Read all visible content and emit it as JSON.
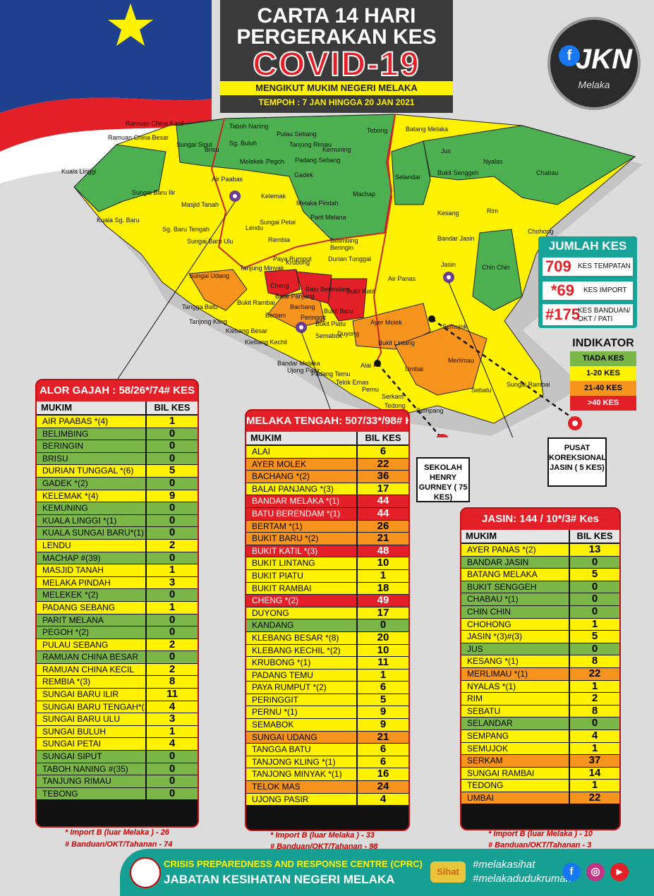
{
  "header": {
    "line1": "CARTA 14 HARI",
    "line2": "PERGERAKAN KES",
    "line3": "COVID-19",
    "subtitle": "MENGIKUT MUKIM NEGERI MELAKA",
    "period": "TEMPOH : 7 JAN HINGGA 20 JAN  2021"
  },
  "logo": {
    "text": "JKN",
    "sub": "Melaka",
    "icon": "facebook-icon"
  },
  "map_labels": [
    "Ramuan China Kecil",
    "Ramuan China Besar",
    "Kuala Linggi",
    "Taboh Naning",
    "Pulau Sebang",
    "Tebong",
    "Batang Melaka",
    "Sungai Siput",
    "Brisu",
    "Sg. Buluh",
    "Tanjung Rimau",
    "Kemuning",
    "Melekek",
    "Pegoh",
    "Padang Sebang",
    "Gadek",
    "Jus",
    "Nyalas",
    "Selandar",
    "Bukit Senggeh",
    "Chabau",
    "Air Paabas",
    "Sungai Baru Ilir",
    "Kelemak",
    "Machap",
    "Masjid Tanah",
    "Melaka Pindah",
    "Kuala Sg. Baru",
    "Lendu",
    "Sungai Petai",
    "Parit Melana",
    "Kesang",
    "Rim",
    "Chohong",
    "Sg. Baru Tengah",
    "Sungai Baru Ulu",
    "Rembia",
    "Belimbing",
    "Beringin",
    "Bandar Jasin",
    "Durian Tunggal",
    "Paya Rumput",
    "Krubong",
    "Tanjung Minyak",
    "Sungai Udang",
    "Cheng",
    "Batu Berendam",
    "Bukit Katil",
    "Air Panas",
    "Jasin",
    "Chin Chin",
    "Balai Panjang",
    "Bukit Rambai",
    "Bachang",
    "Bukit Baru",
    "Bertam",
    "Tangga Batu",
    "Peringgit",
    "Bukit Piatu",
    "Tanjong Kling",
    "Semabok",
    "Duyong",
    "Ayer Molek",
    "Klebang Besar",
    "Klebang Kechil",
    "Bukit Lintang",
    "Semujok",
    "Bandar Melaka",
    "Ujong Pasir",
    "Padang Temu",
    "Alai",
    "Merlimau",
    "Telok Emas",
    "Pernu",
    "Umbai",
    "Sebatu",
    "Sungai Rambai",
    "Serkam",
    "Tedong",
    "Sempang"
  ],
  "jumlah": {
    "title": "JUMLAH KES",
    "items": [
      {
        "num": "709",
        "label": "KES TEMPATAN"
      },
      {
        "num": "*69",
        "label": "KES IMPORT"
      },
      {
        "num": "#175",
        "label": "KES BANDUAN/ OKT / PATI"
      }
    ]
  },
  "indikator": {
    "title": "INDIKATOR",
    "rows": [
      {
        "label": "TIADA KES",
        "color": "#7ab648"
      },
      {
        "label": "1-20  KES",
        "color": "#fff200"
      },
      {
        "label": "21-40  KES",
        "color": "#f7941d"
      },
      {
        "label": ">40  KES",
        "color": "#e32027"
      }
    ]
  },
  "callouts": {
    "henry": "SEKOLAH HENRY GURNEY ( 75 KES)",
    "pusat": "PUSAT KOREKSIONAL JASIN ( 5 KES)"
  },
  "tables": {
    "alor": {
      "title": "ALOR GAJAH : 58/26*/74# KES",
      "h1": "MUKIM",
      "h2": "BIL KES",
      "rows": [
        [
          "AIR PAABAS *(4)",
          "1",
          "y"
        ],
        [
          "BELIMBING",
          "0",
          "g"
        ],
        [
          "BERINGIN",
          "0",
          "g"
        ],
        [
          "BRISU",
          "0",
          "g"
        ],
        [
          "DURIAN TUNGGAL *(6)",
          "5",
          "y"
        ],
        [
          "GADEK *(2)",
          "0",
          "g"
        ],
        [
          "KELEMAK *(4)",
          "9",
          "y"
        ],
        [
          "KEMUNING",
          "0",
          "g"
        ],
        [
          "KUALA LINGGI *(1)",
          "0",
          "g"
        ],
        [
          "KUALA SUNGAI BARU*(1)",
          "0",
          "g"
        ],
        [
          "LENDU",
          "2",
          "y"
        ],
        [
          "MACHAP #(39)",
          "0",
          "g"
        ],
        [
          "MASJID TANAH",
          "1",
          "y"
        ],
        [
          "MELAKA PINDAH",
          "3",
          "y"
        ],
        [
          "MELEKEK *(2)",
          "0",
          "g"
        ],
        [
          "PADANG SEBANG",
          "1",
          "y"
        ],
        [
          "PARIT MELANA",
          "0",
          "g"
        ],
        [
          "PEGOH *(2)",
          "0",
          "g"
        ],
        [
          "PULAU SEBANG",
          "2",
          "y"
        ],
        [
          "RAMUAN CHINA BESAR",
          "0",
          "g"
        ],
        [
          "RAMUAN CHINA KECIL",
          "2",
          "y"
        ],
        [
          "REMBIA *(3)",
          "8",
          "y"
        ],
        [
          "SUNGAI BARU ILIR",
          "11",
          "y"
        ],
        [
          "SUNGAI BARU TENGAH*(1)",
          "4",
          "y"
        ],
        [
          "SUNGAI BARU ULU",
          "3",
          "y"
        ],
        [
          "SUNGAI BULUH",
          "1",
          "y"
        ],
        [
          "SUNGAI PETAI",
          "4",
          "y"
        ],
        [
          "SUNGAI SIPUT",
          "0",
          "g"
        ],
        [
          "TABOH NANING #(35)",
          "0",
          "g"
        ],
        [
          "TANJUNG RIMAU",
          "0",
          "g"
        ],
        [
          "TEBONG",
          "0",
          "g"
        ]
      ],
      "foot1": "* Import B (luar Melaka ) - 26",
      "foot2": "# Banduan/OKT/Tahanan  - 74"
    },
    "tengah": {
      "title": "MELAKA TENGAH: 507/33*/98# KES",
      "h1": "MUKIM",
      "h2": "BIL KES",
      "rows": [
        [
          "ALAI",
          "6",
          "y"
        ],
        [
          "AYER MOLEK",
          "22",
          "o"
        ],
        [
          "BACHANG *(2)",
          "36",
          "o"
        ],
        [
          "BALAI PANJANG *(3)",
          "17",
          "y"
        ],
        [
          "BANDAR MELAKA *(1)",
          "44",
          "r"
        ],
        [
          "BATU BERENDAM *(1)",
          "44",
          "r"
        ],
        [
          "BERTAM *(1)",
          "26",
          "o"
        ],
        [
          "BUKIT BARU *(2)",
          "21",
          "o"
        ],
        [
          "BUKIT KATIL *(3)",
          "48",
          "r"
        ],
        [
          "BUKIT LINTANG",
          "10",
          "y"
        ],
        [
          "BUKIT PIATU",
          "1",
          "y"
        ],
        [
          "BUKIT RAMBAI",
          "18",
          "y"
        ],
        [
          "CHENG *(2)",
          "49",
          "r"
        ],
        [
          "DUYONG",
          "17",
          "y"
        ],
        [
          "KANDANG",
          "0",
          "g"
        ],
        [
          "KLEBANG BESAR *(8)",
          "20",
          "y"
        ],
        [
          "KLEBANG KECHIL *(2)",
          "10",
          "y"
        ],
        [
          "KRUBONG *(1)",
          "11",
          "y"
        ],
        [
          "PADANG TEMU",
          "1",
          "y"
        ],
        [
          "PAYA RUMPUT *(2)",
          "6",
          "y"
        ],
        [
          "PERINGGIT",
          "5",
          "y"
        ],
        [
          "PERNU *(1)",
          "9",
          "y"
        ],
        [
          "SEMABOK",
          "9",
          "y"
        ],
        [
          "SUNGAI UDANG",
          "21",
          "o"
        ],
        [
          "TANGGA BATU",
          "6",
          "y"
        ],
        [
          "TANJONG KLING *(1)",
          "6",
          "y"
        ],
        [
          "TANJONG MINYAK *(1)",
          "16",
          "y"
        ],
        [
          "TELOK MAS",
          "24",
          "o"
        ],
        [
          "UJONG PASIR",
          "4",
          "y"
        ]
      ],
      "foot1": "* Import B (luar Melaka ) - 33",
      "foot2": "# Banduan/OKT/Tahanan  - 98"
    },
    "jasin": {
      "title": "JASIN:  144 / 10*/3# Kes",
      "h1": "MUKIM",
      "h2": "BIL KES",
      "rows": [
        [
          "AYER PANAS *(2)",
          "13",
          "y"
        ],
        [
          "BANDAR JASIN",
          "0",
          "g"
        ],
        [
          "BATANG MELAKA",
          "5",
          "y"
        ],
        [
          "BUKIT SENGGEH",
          "0",
          "g"
        ],
        [
          "CHABAU *(1)",
          "0",
          "g"
        ],
        [
          "CHIN CHIN",
          "0",
          "g"
        ],
        [
          "CHOHONG",
          "1",
          "y"
        ],
        [
          "JASIN *(3)#(3)",
          "5",
          "y"
        ],
        [
          "JUS",
          "0",
          "g"
        ],
        [
          "KESANG *(1)",
          "8",
          "y"
        ],
        [
          "MERLIMAU *(1)",
          "22",
          "o"
        ],
        [
          "NYALAS *(1)",
          "1",
          "y"
        ],
        [
          "RIM",
          "2",
          "y"
        ],
        [
          "SEBATU",
          "8",
          "y"
        ],
        [
          "SELANDAR",
          "0",
          "g"
        ],
        [
          "SEMPANG",
          "4",
          "y"
        ],
        [
          "SEMUJOK",
          "1",
          "y"
        ],
        [
          "SERKAM",
          "37",
          "o"
        ],
        [
          "SUNGAI RAMBAI",
          "14",
          "y"
        ],
        [
          "TEDONG",
          "1",
          "y"
        ],
        [
          "UMBAI",
          "22",
          "o"
        ]
      ],
      "foot1": "* Import B (luar Melaka ) - 10",
      "foot2": "# Banduan/OKT/Tahanan  - 3"
    }
  },
  "footer": {
    "line1": "CRISIS PREPAREDNESS AND RESPONSE CENTRE (CPRC)",
    "line2": "JABATAN KESIHATAN NEGERI MELAKA",
    "tag1": "#melakasihat",
    "tag2": "#melakadudukrumah",
    "sihat": "Sihat",
    "social": [
      "facebook-icon",
      "instagram-icon",
      "youtube-icon"
    ]
  }
}
